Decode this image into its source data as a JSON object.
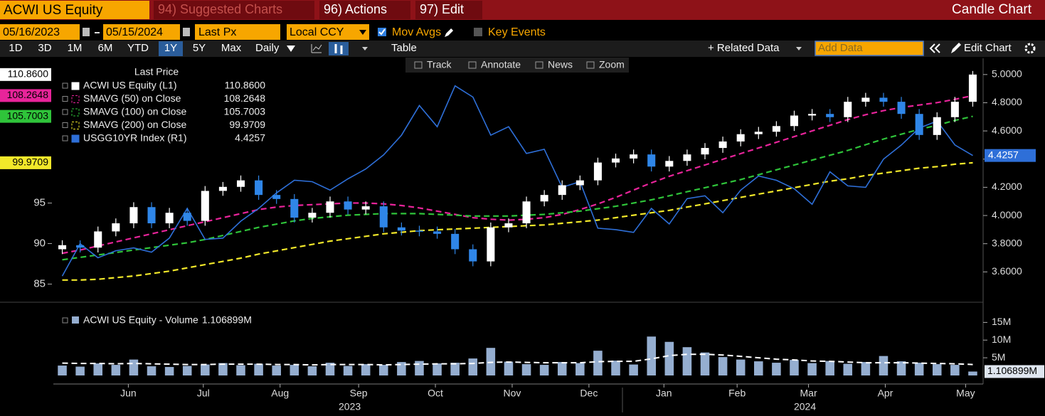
{
  "header": {
    "security": "ACWI US Equity",
    "menus": [
      "94) Suggested Charts",
      "96) Actions",
      "97) Edit"
    ],
    "chart_type": "Candle Chart"
  },
  "settings": {
    "start_date": "05/16/2023",
    "end_date": "05/15/2024",
    "field": "Last Px",
    "currency": "Local CCY",
    "options": [
      {
        "label": "Mov Avgs",
        "checked": true
      },
      {
        "label": "Key Events",
        "checked": false
      }
    ],
    "periods": [
      "1D",
      "3D",
      "1M",
      "6M",
      "YTD",
      "1Y",
      "5Y",
      "Max"
    ],
    "active_period": "1Y",
    "frequency": "Daily",
    "table": "Table",
    "related": "+ Related Data",
    "add_data": "Add Data",
    "edit_chart": "Edit Chart"
  },
  "toolbar": [
    "Track",
    "Annotate",
    "News",
    "Zoom"
  ],
  "chart_data": [
    {
      "type": "candlestick",
      "legend_title": "Last Price",
      "xticks": [
        {
          "value": 3.7,
          "label": "Jun"
        },
        {
          "value": 7.9,
          "label": "Jul"
        },
        {
          "value": 12.2,
          "label": "Aug"
        },
        {
          "value": 16.6,
          "label": "Sep"
        },
        {
          "value": 20.9,
          "label": "Oct"
        },
        {
          "value": 25.2,
          "label": "Nov"
        },
        {
          "value": 29.5,
          "label": "Dec"
        },
        {
          "value": 33.7,
          "label": "Jan"
        },
        {
          "value": 37.8,
          "label": "Feb"
        },
        {
          "value": 41.8,
          "label": "Mar"
        },
        {
          "value": 46.1,
          "label": "Apr"
        },
        {
          "value": 50.6,
          "label": "May"
        }
      ],
      "year_ticks": [
        {
          "value": 16.1,
          "label": "2023"
        },
        {
          "value": 41.6,
          "label": "2024"
        }
      ],
      "ylim": [
        83.2,
        112.6
      ],
      "yticks": [
        85,
        90,
        95
      ],
      "y2lim": [
        3.41,
        5.1
      ],
      "y2ticks": [
        {
          "value": 3.6,
          "label": "3.6000"
        },
        {
          "value": 3.8,
          "label": "3.8000"
        },
        {
          "value": 4.0,
          "label": "4.0000"
        },
        {
          "value": 4.2,
          "label": "4.2000"
        },
        {
          "value": 4.4,
          "label": "4.4000"
        },
        {
          "value": 4.6,
          "label": "4.6000"
        },
        {
          "value": 4.8,
          "label": "4.8000"
        },
        {
          "value": 5.0,
          "label": "5.0000"
        }
      ],
      "candles": {
        "name": "ACWI US Equity  (L1)",
        "last_label": "110.8600",
        "up_color": "#ffffff",
        "down_color": "#2f86e8",
        "open": [
          89.3,
          89.8,
          89.5,
          91.5,
          92.5,
          94.5,
          92.5,
          93.8,
          92.8,
          96.5,
          97.0,
          97.8,
          96.0,
          95.5,
          93.2,
          93.8,
          95.2,
          94.2,
          94.6,
          92.0,
          91.6,
          91.5,
          91.2,
          89.3,
          87.8,
          92.0,
          92.5,
          95.2,
          96.0,
          97.2,
          97.8,
          100.0,
          100.5,
          101.0,
          99.5,
          100.2,
          101.0,
          101.8,
          102.6,
          103.5,
          103.8,
          104.5,
          105.8,
          106.0,
          105.6,
          107.5,
          108.0,
          107.5,
          106.0,
          103.4,
          105.6,
          107.5
        ],
        "high": [
          90.4,
          90.4,
          92.1,
          93.1,
          95.1,
          95.1,
          94.4,
          94.4,
          97.1,
          97.6,
          98.4,
          98.4,
          96.6,
          96.1,
          94.4,
          95.8,
          95.8,
          95.2,
          95.2,
          92.6,
          92.2,
          92.1,
          91.8,
          89.9,
          92.6,
          93.1,
          95.8,
          96.6,
          97.8,
          98.4,
          100.6,
          101.1,
          101.6,
          101.6,
          100.8,
          101.6,
          102.4,
          103.2,
          104.1,
          104.4,
          105.1,
          106.4,
          106.6,
          106.6,
          108.1,
          108.6,
          108.6,
          108.1,
          106.6,
          106.2,
          108.1,
          111.3
        ],
        "low": [
          88.7,
          88.9,
          88.9,
          90.9,
          91.9,
          91.9,
          91.9,
          92.2,
          92.2,
          95.9,
          96.4,
          95.4,
          94.9,
          92.6,
          92.6,
          93.2,
          93.6,
          93.6,
          91.4,
          91.0,
          90.9,
          90.6,
          88.7,
          87.2,
          87.2,
          91.4,
          91.9,
          94.6,
          95.4,
          96.6,
          97.2,
          99.4,
          99.9,
          98.9,
          98.9,
          99.6,
          100.4,
          101.2,
          102.0,
          102.9,
          103.2,
          103.9,
          105.2,
          105.0,
          105.0,
          106.9,
          106.9,
          105.4,
          102.8,
          102.8,
          105.0,
          106.9
        ],
        "close": [
          89.8,
          89.5,
          91.5,
          92.5,
          94.5,
          92.5,
          93.8,
          92.8,
          96.5,
          97.0,
          97.8,
          96.0,
          95.5,
          93.2,
          93.8,
          95.2,
          94.2,
          94.6,
          92.0,
          91.6,
          91.5,
          91.2,
          89.3,
          87.8,
          92.0,
          92.5,
          95.2,
          96.0,
          97.2,
          97.8,
          100.0,
          100.5,
          101.0,
          99.5,
          100.2,
          101.0,
          101.8,
          102.6,
          103.5,
          103.8,
          104.5,
          105.8,
          106.0,
          105.6,
          107.5,
          108.0,
          107.5,
          106.0,
          103.4,
          105.6,
          107.5,
          110.86
        ]
      },
      "series": [
        {
          "name": "SMAVG (50)  on Close",
          "color": "#e8249a",
          "dash": true,
          "last_label": "108.2648",
          "values": [
            88.8,
            89.2,
            89.7,
            90.2,
            90.7,
            91.2,
            91.7,
            92.2,
            92.7,
            93.2,
            93.7,
            94.2,
            94.5,
            94.7,
            94.8,
            94.9,
            95.0,
            95.0,
            94.9,
            94.7,
            94.4,
            94.0,
            93.6,
            93.2,
            93.0,
            92.9,
            93.0,
            93.2,
            93.6,
            94.2,
            94.9,
            95.7,
            96.6,
            97.5,
            98.3,
            99.0,
            99.7,
            100.4,
            101.1,
            101.8,
            102.5,
            103.2,
            103.9,
            104.6,
            105.3,
            105.9,
            106.4,
            106.8,
            107.1,
            107.4,
            107.8,
            108.2648
          ]
        },
        {
          "name": "SMAVG (100)  on Close",
          "color": "#2fc43a",
          "dash": true,
          "last_label": "105.7003",
          "values": [
            88.0,
            88.3,
            88.6,
            88.9,
            89.2,
            89.5,
            89.8,
            90.1,
            90.5,
            91.0,
            91.5,
            92.0,
            92.4,
            92.8,
            93.1,
            93.3,
            93.5,
            93.6,
            93.7,
            93.7,
            93.7,
            93.6,
            93.5,
            93.4,
            93.4,
            93.4,
            93.5,
            93.6,
            93.8,
            94.0,
            94.3,
            94.6,
            95.0,
            95.4,
            95.9,
            96.4,
            96.9,
            97.4,
            97.9,
            98.5,
            99.1,
            99.7,
            100.3,
            100.9,
            101.5,
            102.2,
            102.9,
            103.5,
            104.1,
            104.6,
            105.2,
            105.7003
          ]
        },
        {
          "name": "SMAVG (200)  on Close",
          "color": "#f2e82a",
          "dash": true,
          "last_label": "99.9709",
          "values": [
            85.5,
            85.5,
            85.6,
            85.8,
            86.0,
            86.3,
            86.6,
            87.0,
            87.4,
            87.8,
            88.2,
            88.7,
            89.1,
            89.5,
            89.9,
            90.3,
            90.6,
            90.9,
            91.2,
            91.4,
            91.6,
            91.7,
            91.8,
            91.9,
            92.0,
            92.1,
            92.2,
            92.3,
            92.5,
            92.7,
            92.9,
            93.2,
            93.5,
            93.8,
            94.1,
            94.5,
            94.9,
            95.3,
            95.7,
            96.1,
            96.5,
            96.9,
            97.3,
            97.7,
            98.0,
            98.4,
            98.7,
            99.0,
            99.3,
            99.5,
            99.8,
            99.9709
          ]
        },
        {
          "name": "USGG10YR Index  (R1)",
          "color": "#2e6fd8",
          "axis": "y2",
          "last_label": "4.4257",
          "values": [
            3.57,
            3.8,
            3.7,
            3.75,
            3.77,
            3.74,
            3.84,
            4.05,
            3.83,
            3.84,
            3.96,
            4.05,
            4.16,
            4.25,
            4.24,
            4.18,
            4.26,
            4.33,
            4.43,
            4.57,
            4.78,
            4.63,
            4.92,
            4.84,
            4.57,
            4.63,
            4.44,
            4.47,
            4.2,
            4.24,
            3.91,
            3.9,
            3.88,
            4.05,
            3.94,
            4.12,
            4.14,
            4.02,
            4.18,
            4.28,
            4.25,
            4.19,
            4.08,
            4.31,
            4.21,
            4.2,
            4.4,
            4.5,
            4.62,
            4.67,
            4.5,
            4.4257
          ]
        }
      ]
    },
    {
      "type": "bar",
      "legend": "ACWI US Equity - Volume",
      "last_label": "1.106899M",
      "color": "#95aed0",
      "ylim": [
        0,
        19.3
      ],
      "yticks": [
        {
          "value": 5,
          "label": "5M"
        },
        {
          "value": 10,
          "label": "10M"
        },
        {
          "value": 15,
          "label": "15M"
        }
      ],
      "values": [
        2.8,
        2.5,
        3.4,
        3.0,
        4.5,
        2.6,
        2.4,
        2.7,
        3.1,
        3.5,
        2.9,
        3.3,
        2.8,
        3.0,
        2.6,
        3.6,
        2.7,
        3.2,
        3.0,
        3.8,
        4.1,
        3.4,
        3.6,
        4.8,
        7.8,
        3.9,
        3.2,
        3.0,
        3.8,
        3.5,
        7.0,
        4.2,
        3.1,
        11.0,
        9.5,
        8.0,
        6.5,
        5.2,
        4.5,
        4.0,
        3.6,
        4.4,
        3.5,
        4.1,
        3.3,
        3.8,
        5.5,
        4.0,
        3.6,
        3.2,
        3.0,
        1.106899
      ],
      "average": {
        "color": "#ffffff",
        "values": [
          3.5,
          3.4,
          3.4,
          3.3,
          3.4,
          3.3,
          3.2,
          3.1,
          3.1,
          3.2,
          3.2,
          3.2,
          3.1,
          3.1,
          3.0,
          3.1,
          3.1,
          3.1,
          3.0,
          3.1,
          3.2,
          3.3,
          3.3,
          3.4,
          3.7,
          3.8,
          3.7,
          3.6,
          3.6,
          3.6,
          3.9,
          4.0,
          4.0,
          4.7,
          5.6,
          6.0,
          6.0,
          5.8,
          5.4,
          5.0,
          4.6,
          4.4,
          4.1,
          4.0,
          3.8,
          3.6,
          3.6,
          3.6,
          3.5,
          3.4,
          3.3,
          3.1
        ]
      }
    }
  ]
}
